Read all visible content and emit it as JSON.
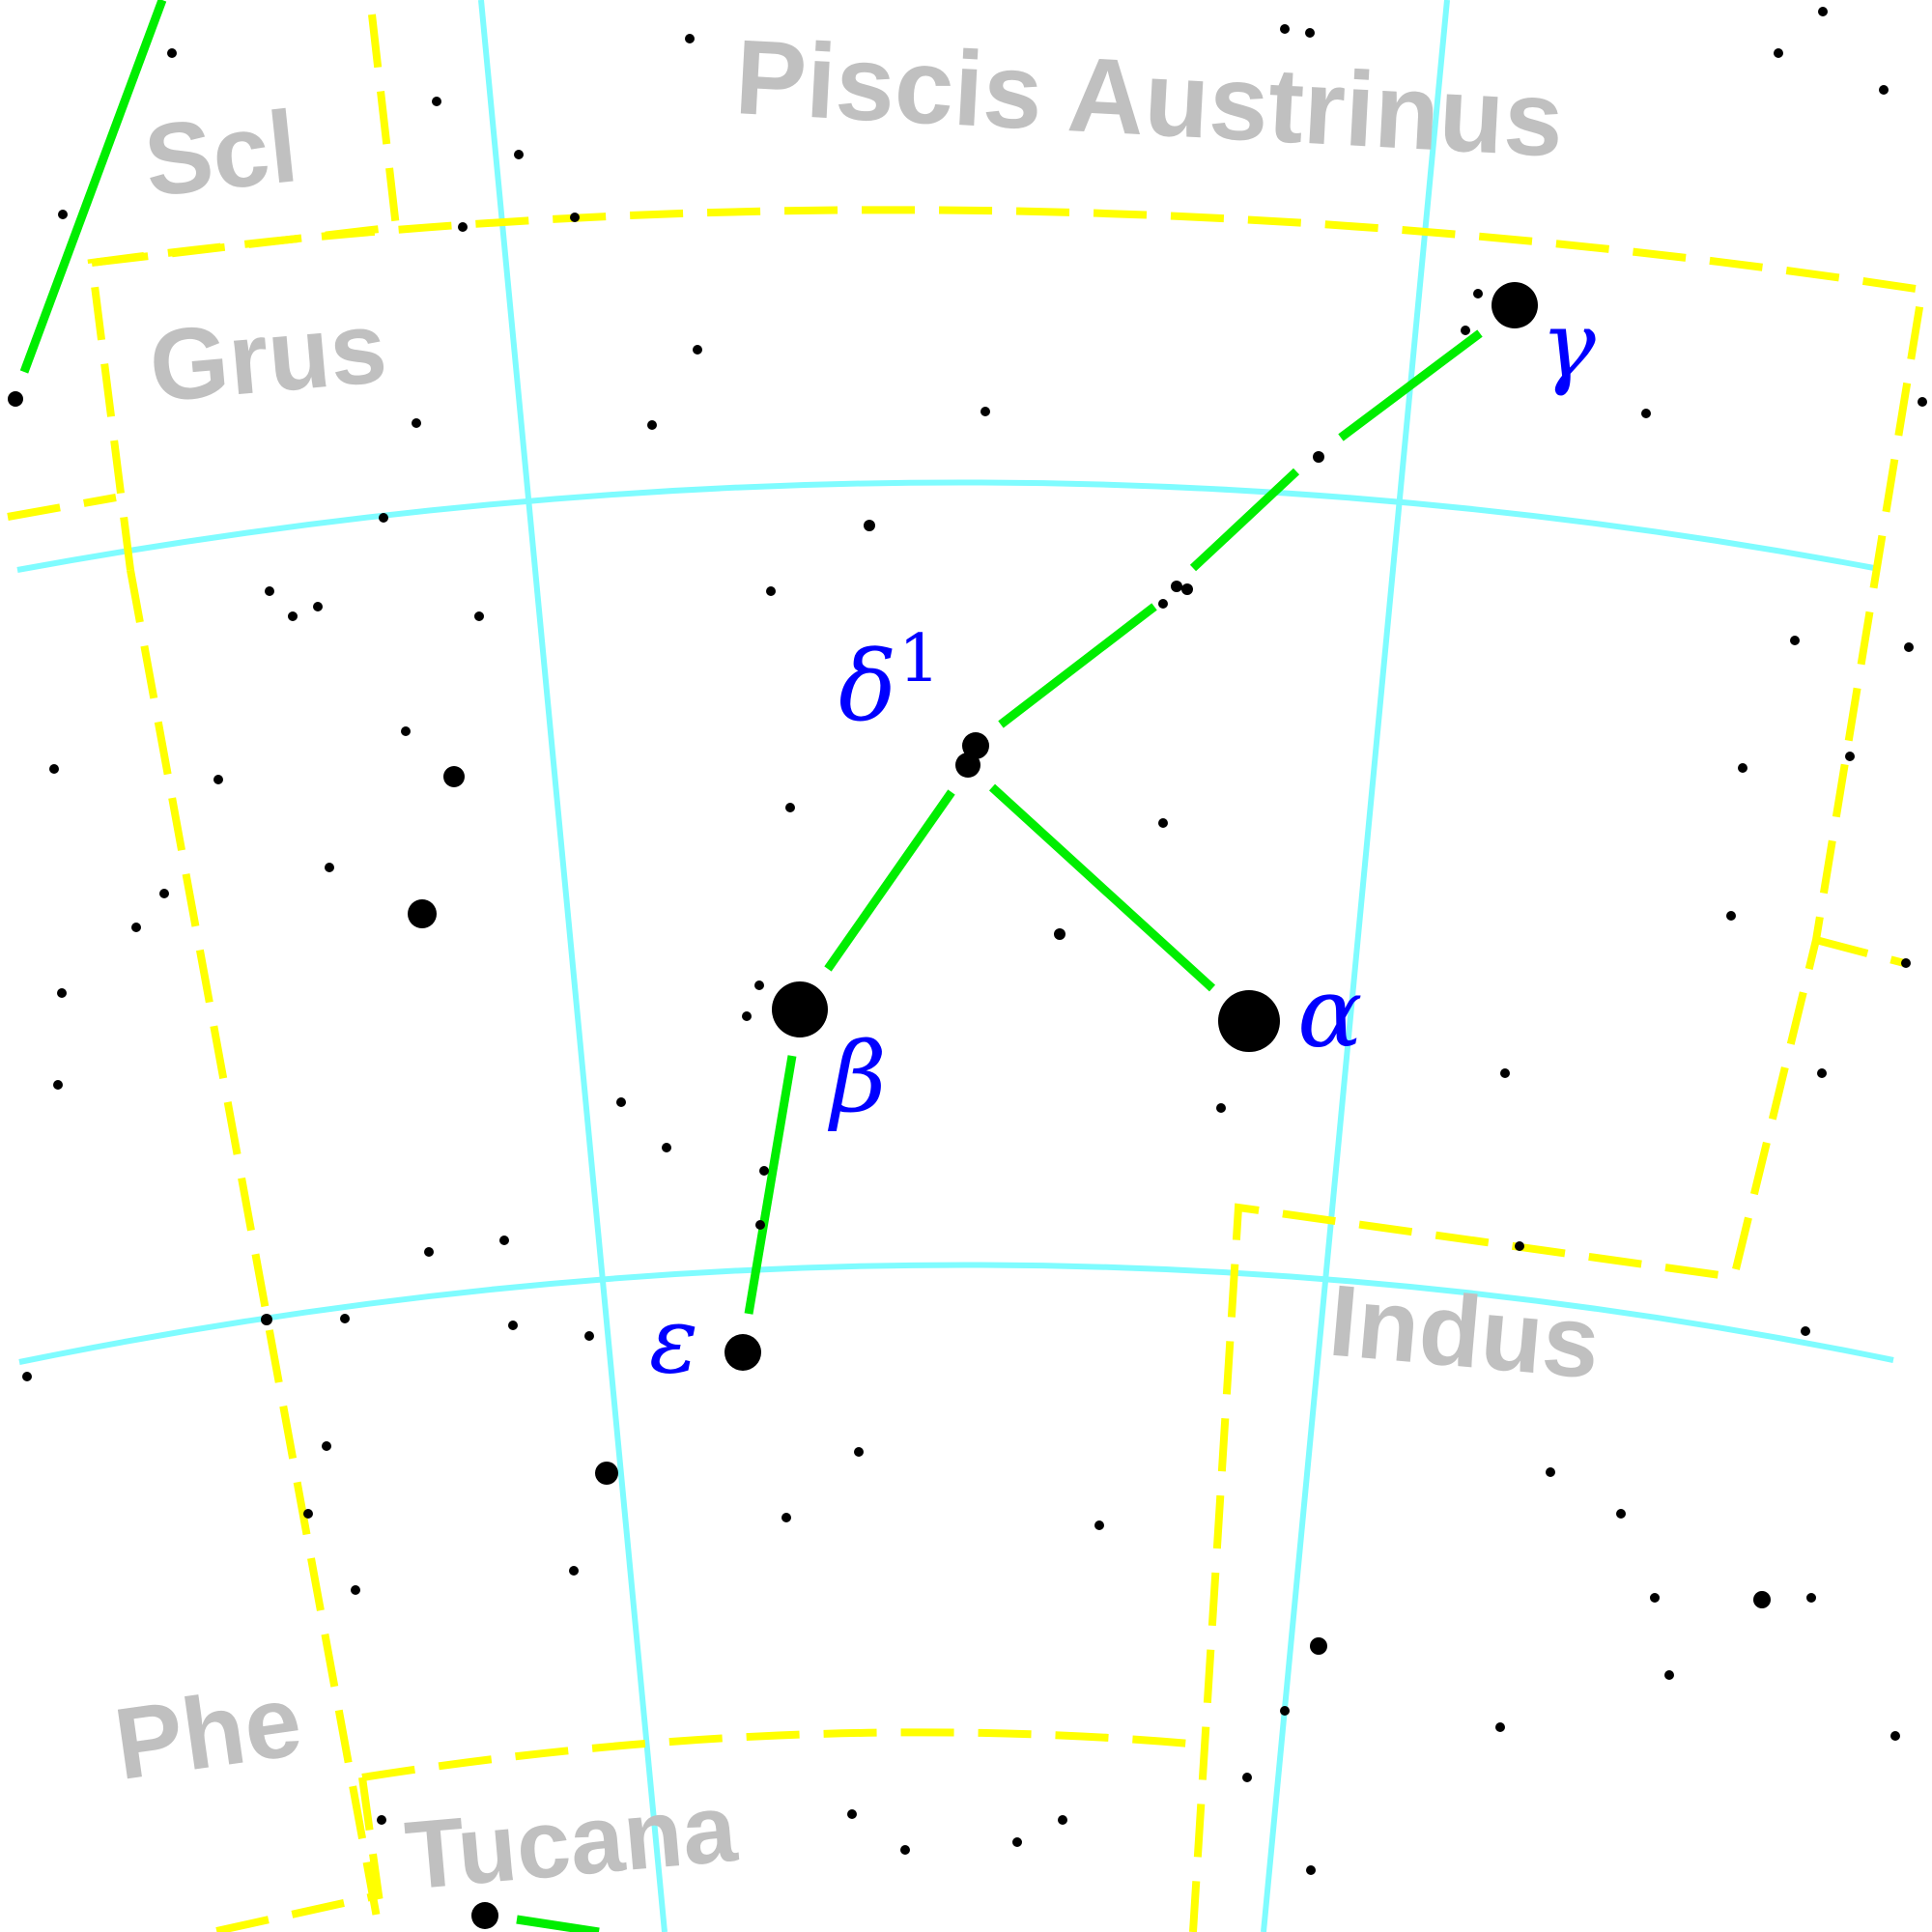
{
  "colors": {
    "background": "#ffffff",
    "grid": "#7ffcff",
    "boundary": "#ffff00",
    "figure": "#00ee00",
    "star": "#000000",
    "constellation_label": "#c0c0c0",
    "greek_label": "#0000ff"
  },
  "labels": {
    "piscis_austrinus": "Piscis Austrinus",
    "scl": "Scl",
    "grus": "Grus",
    "indus": "Indus",
    "phe": "Phe",
    "tucana": "Tucana"
  },
  "greek": {
    "gamma": "γ",
    "delta": "δ",
    "delta_sup": "1",
    "alpha": "α",
    "beta": "β",
    "epsilon": "ε"
  }
}
